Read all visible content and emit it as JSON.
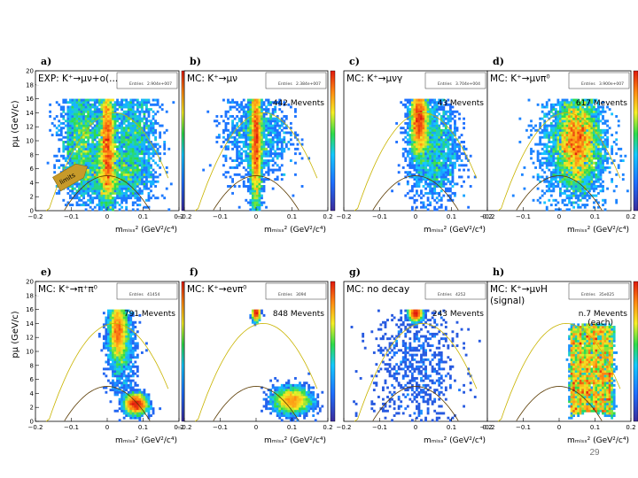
{
  "slide": {
    "page_number": "29"
  },
  "chart_data": [
    {
      "type": "heatmap",
      "letter": "a)",
      "title": "EXP: K⁺→μν+o(...)",
      "stats_entries": "2.904e+007",
      "count_label": "",
      "annotation": "limits",
      "xlabel": "mₘᵢₛₛ² (GeV²/c⁴)",
      "ylabel": "pμ (GeV/c)",
      "xlim": [
        -0.2,
        0.2
      ],
      "ylim": [
        0,
        20
      ],
      "xticks": [
        "−0.2",
        "−0.1",
        "0",
        "0.1",
        "0.2"
      ],
      "yticks": [
        "0",
        "2",
        "4",
        "6",
        "8",
        "10",
        "12",
        "14",
        "16",
        "18",
        "20"
      ],
      "blobs": [
        {
          "x": 0.0,
          "y": 9.5,
          "sx": 0.011,
          "sy": 5.0,
          "weight": 1.0
        },
        {
          "x": -0.07,
          "y": 10.5,
          "sx": 0.03,
          "sy": 4.0,
          "weight": 0.55
        },
        {
          "x": 0.07,
          "y": 10.0,
          "sx": 0.035,
          "sy": 4.5,
          "weight": 0.5
        },
        {
          "x": 0.0,
          "y": 5.0,
          "sx": 0.05,
          "sy": 1.8,
          "weight": 0.35
        }
      ]
    },
    {
      "type": "heatmap",
      "letter": "b)",
      "title": "MC: K⁺→μν",
      "stats_entries": "2.384e+007",
      "count_label": "442 Mevents",
      "annotation": "",
      "xlabel": "mₘᵢₛₛ² (GeV²/c⁴)",
      "ylabel": "",
      "xlim": [
        -0.2,
        0.2
      ],
      "ylim": [
        0,
        20
      ],
      "xticks": [
        "−0.2",
        "−0.1",
        "0",
        "0.1",
        "0.2"
      ],
      "yticks": [],
      "blobs": [
        {
          "x": 0.0,
          "y": 10.0,
          "sx": 0.008,
          "sy": 5.0,
          "weight": 1.0
        },
        {
          "x": 0.0,
          "y": 11.0,
          "sx": 0.045,
          "sy": 3.5,
          "weight": 0.35
        }
      ]
    },
    {
      "type": "heatmap",
      "letter": "c)",
      "title": "MC: K⁺→μνγ",
      "stats_entries": "3.704e+004",
      "count_label": "43 Mevents",
      "annotation": "",
      "xlabel": "mₘᵢₛₛ² (GeV²/c⁴)",
      "ylabel": "",
      "xlim": [
        -0.2,
        0.2
      ],
      "ylim": [
        0,
        20
      ],
      "xticks": [
        "−0.2",
        "−0.1",
        "0",
        "0.1",
        "0.2"
      ],
      "yticks": [],
      "blobs": [
        {
          "x": 0.01,
          "y": 13.0,
          "sx": 0.012,
          "sy": 2.5,
          "weight": 1.0
        },
        {
          "x": 0.05,
          "y": 9.0,
          "sx": 0.035,
          "sy": 4.0,
          "weight": 0.55
        }
      ]
    },
    {
      "type": "heatmap",
      "letter": "d)",
      "title": "MC: K⁺→μνπ⁰",
      "stats_entries": "3.900e+007",
      "count_label": "617 Mevents",
      "annotation": "",
      "xlabel": "mₘᵢₛₛ² (GeV²/c⁴)",
      "ylabel": "",
      "xlim": [
        -0.2,
        0.2
      ],
      "ylim": [
        0,
        20
      ],
      "xticks": [
        "−0.2",
        "−0.1",
        "0",
        "0.1",
        "0.2"
      ],
      "yticks": [],
      "blobs": [
        {
          "x": 0.05,
          "y": 10.0,
          "sx": 0.03,
          "sy": 3.2,
          "weight": 1.0
        },
        {
          "x": 0.04,
          "y": 9.0,
          "sx": 0.05,
          "sy": 4.5,
          "weight": 0.5
        }
      ]
    },
    {
      "type": "heatmap",
      "letter": "e)",
      "title": "MC: K⁺→π⁺π⁰",
      "stats_entries": "41454",
      "count_label": "791 Mevents",
      "annotation": "",
      "xlabel": "mₘᵢₛₛ² (GeV²/c⁴)",
      "ylabel": "pμ (GeV/c)",
      "xlim": [
        -0.2,
        0.2
      ],
      "ylim": [
        0,
        20
      ],
      "xticks": [
        "−0.2",
        "−0.1",
        "0",
        "0.1",
        "0.2"
      ],
      "yticks": [
        "0",
        "2",
        "4",
        "6",
        "8",
        "10",
        "12",
        "14",
        "16",
        "18",
        "20"
      ],
      "blobs": [
        {
          "x": 0.03,
          "y": 13.0,
          "sx": 0.012,
          "sy": 2.0,
          "weight": 1.0
        },
        {
          "x": 0.08,
          "y": 2.5,
          "sx": 0.015,
          "sy": 0.7,
          "weight": 0.8
        },
        {
          "x": 0.04,
          "y": 10.0,
          "sx": 0.02,
          "sy": 3.0,
          "weight": 0.3
        }
      ]
    },
    {
      "type": "heatmap",
      "letter": "f)",
      "title": "MC: K⁺→eνπ⁰",
      "stats_entries": "3094",
      "count_label": "848 Mevents",
      "annotation": "",
      "xlabel": "mₘᵢₛₛ² (GeV²/c⁴)",
      "ylabel": "",
      "xlim": [
        -0.2,
        0.2
      ],
      "ylim": [
        0,
        20
      ],
      "xticks": [
        "−0.2",
        "−0.1",
        "0",
        "0.1",
        "0.2"
      ],
      "yticks": [],
      "blobs": [
        {
          "x": 0.1,
          "y": 3.0,
          "sx": 0.025,
          "sy": 0.9,
          "weight": 1.0
        },
        {
          "x": 0.0,
          "y": 15.5,
          "sx": 0.005,
          "sy": 0.5,
          "weight": 0.3
        }
      ]
    },
    {
      "type": "heatmap",
      "letter": "g)",
      "title": "MC: no decay",
      "stats_entries": "4252",
      "count_label": "243 Mevents",
      "annotation": "",
      "xlabel": "mₘᵢₛₛ² (GeV²/c⁴)",
      "ylabel": "",
      "xlim": [
        -0.2,
        0.2
      ],
      "ylim": [
        0,
        20
      ],
      "xticks": [
        "−0.2",
        "−0.1",
        "0",
        "0.1",
        "0.2"
      ],
      "yticks": [],
      "blobs": [
        {
          "x": 0.0,
          "y": 15.5,
          "sx": 0.008,
          "sy": 0.5,
          "weight": 1.0
        },
        {
          "x": 0.0,
          "y": 8.0,
          "sx": 0.06,
          "sy": 6.0,
          "weight": 0.25
        }
      ]
    },
    {
      "type": "heatmap",
      "letter": "h)",
      "title": "MC: K⁺→μνH",
      "subtitle": "(signal)",
      "stats_entries": "35e025",
      "count_label": "n.7 Mevents (each)",
      "annotation": "",
      "xlabel": "mₘᵢₛₛ² (GeV²/c⁴)",
      "ylabel": "",
      "xlim": [
        -0.2,
        0.2
      ],
      "ylim": [
        0,
        20
      ],
      "xticks": [
        "−0.2",
        "−0.1",
        "0",
        "0.1",
        "0.2"
      ],
      "yticks": [],
      "bands": [
        0.04,
        0.06,
        0.08,
        0.1,
        0.12,
        0.14
      ]
    }
  ]
}
